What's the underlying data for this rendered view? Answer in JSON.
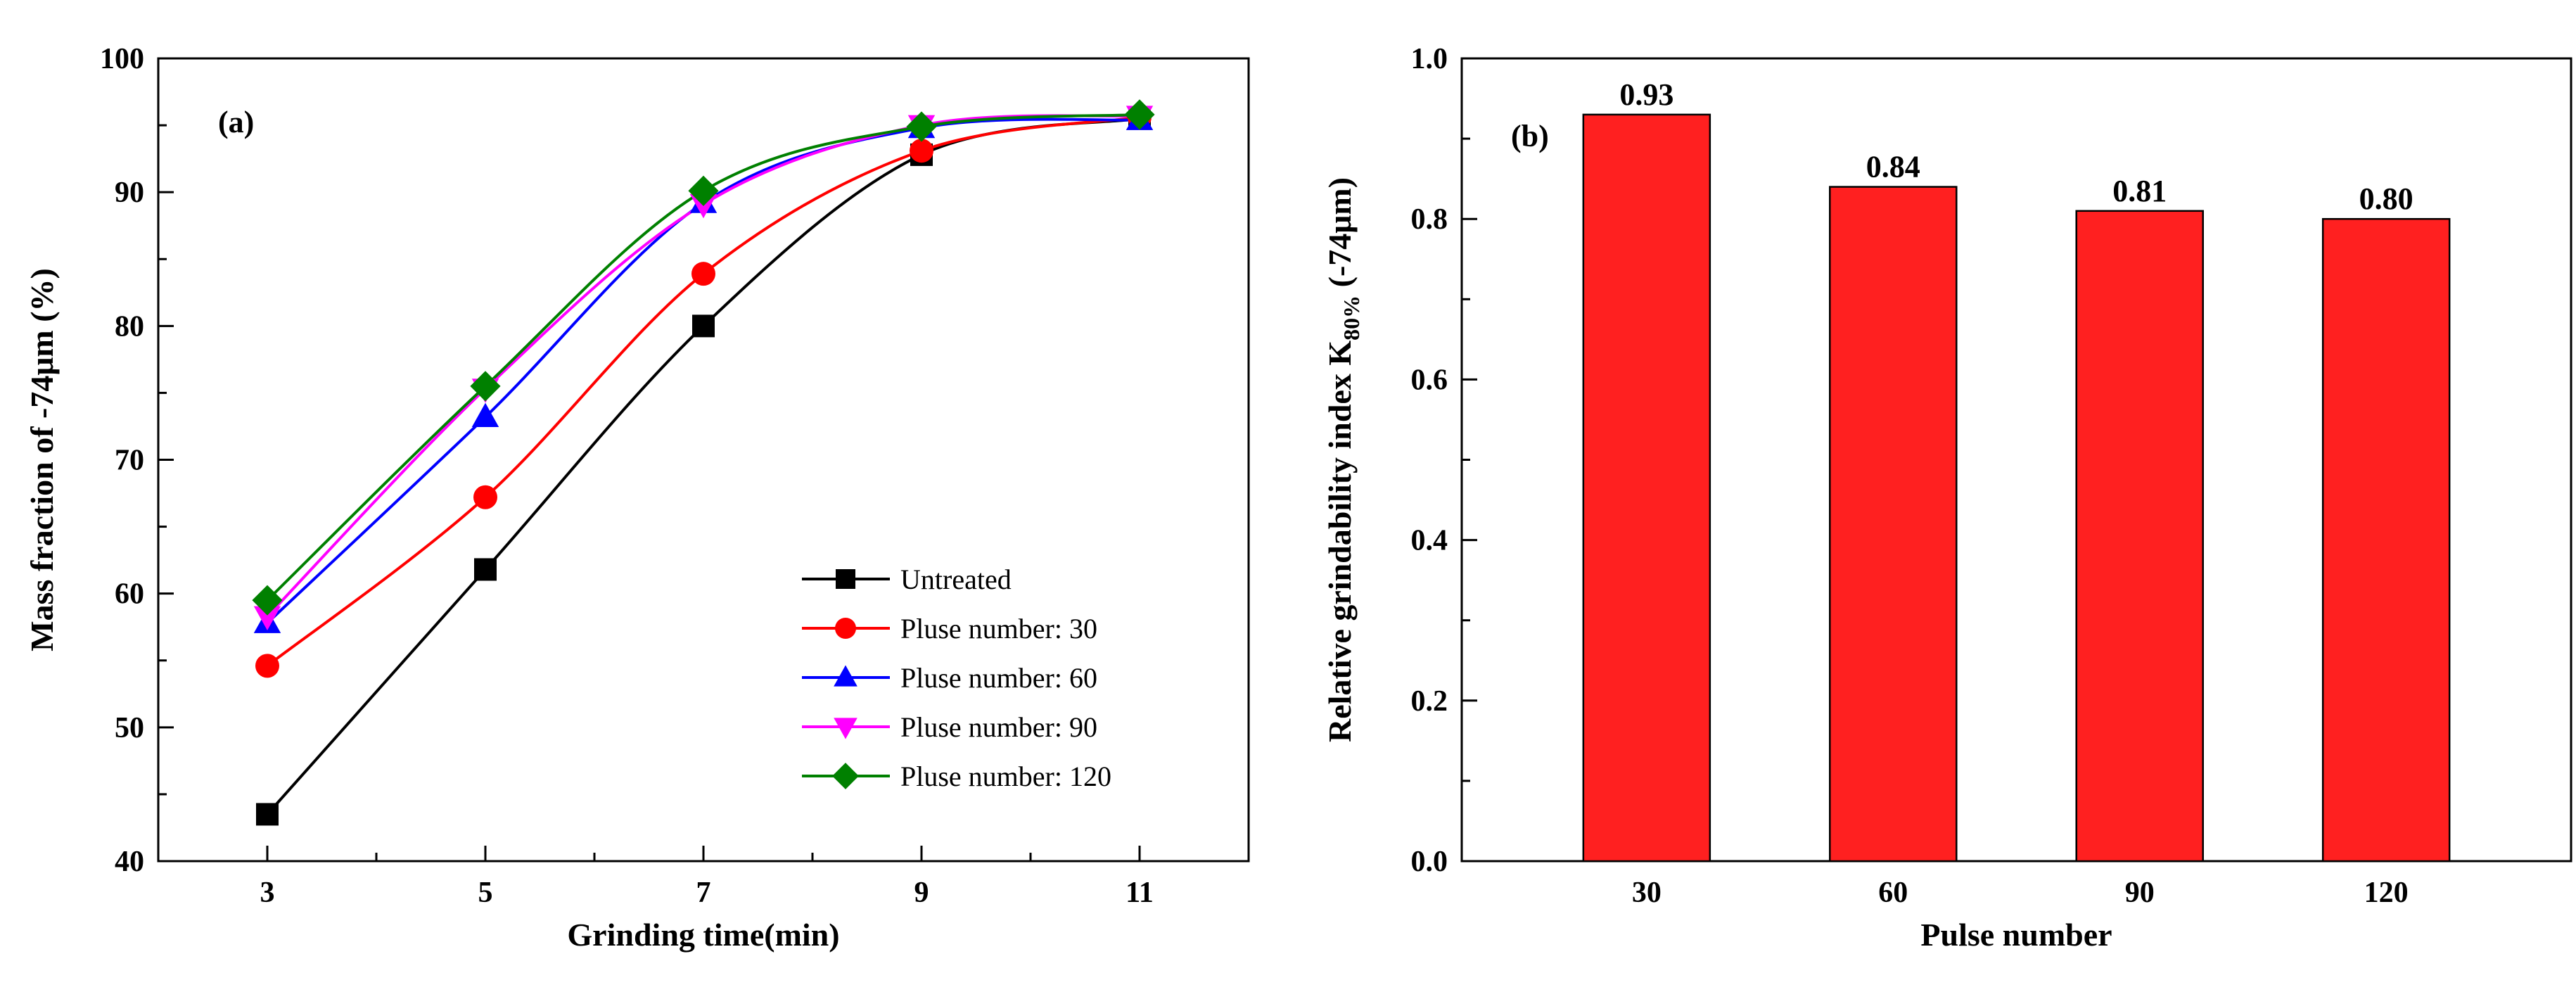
{
  "chart_data": [
    {
      "type": "line",
      "panel_label": "(a)",
      "xlabel": "Grinding time(min)",
      "ylabel": "Mass fraction of -74μm (%)",
      "x": [
        3,
        5,
        7,
        9,
        11
      ],
      "xlim": [
        2,
        12
      ],
      "ylim": [
        40,
        100
      ],
      "x_ticks": [
        "3",
        "5",
        "7",
        "9",
        "11"
      ],
      "y_ticks": [
        "40",
        "50",
        "60",
        "70",
        "80",
        "90",
        "100"
      ],
      "legend_position": "lower-right",
      "series": [
        {
          "name": "Untreated",
          "values": [
            43.5,
            61.8,
            80.0,
            92.8,
            95.5
          ],
          "color": "#000000",
          "marker": "square"
        },
        {
          "name": "Pluse number: 30",
          "values": [
            54.6,
            67.2,
            83.9,
            93.1,
            95.6
          ],
          "color": "#ff0000",
          "marker": "circle"
        },
        {
          "name": "Pluse number: 60",
          "values": [
            57.8,
            73.2,
            89.2,
            94.8,
            95.4
          ],
          "color": "#0000ff",
          "marker": "triangle-up"
        },
        {
          "name": "Pluse number: 90",
          "values": [
            58.3,
            75.3,
            89.1,
            95.0,
            95.7
          ],
          "color": "#ff00ff",
          "marker": "triangle-down"
        },
        {
          "name": "Pluse number: 120",
          "values": [
            59.5,
            75.5,
            90.1,
            94.9,
            95.8
          ],
          "color": "#008000",
          "marker": "diamond"
        }
      ]
    },
    {
      "type": "bar",
      "panel_label": "(b)",
      "xlabel": "Pulse number",
      "ylabel_main": "Relative grindability index K",
      "ylabel_sub": "80%",
      "ylabel_tail": " (-74μm)",
      "categories": [
        "30",
        "60",
        "90",
        "120"
      ],
      "values": [
        0.93,
        0.84,
        0.81,
        0.8
      ],
      "value_labels": [
        "0.93",
        "0.84",
        "0.81",
        "0.80"
      ],
      "ylim": [
        0.0,
        1.0
      ],
      "y_ticks": [
        "0.0",
        "0.2",
        "0.4",
        "0.6",
        "0.8",
        "1.0"
      ],
      "bar_color": "#ff2020"
    }
  ]
}
